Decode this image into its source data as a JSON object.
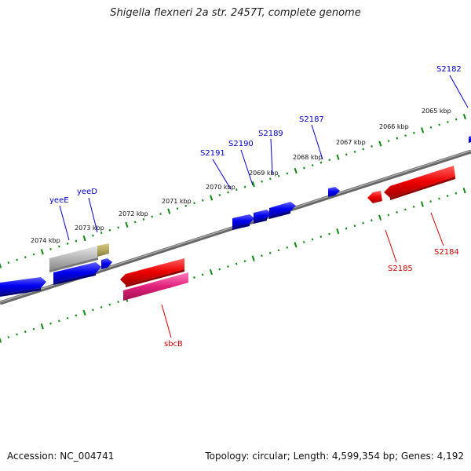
{
  "title": "Shigella flexneri 2a str. 2457T, complete genome",
  "footer": {
    "accession": "Accession: NC_004741",
    "stats": "Topology: circular; Length: 4,599,354 bp; Genes: 4,192"
  },
  "colors": {
    "forward_gene": "#0000ee",
    "reverse_gene": "#ee0000",
    "pseudogene": "#b0b0b0",
    "rna_gene": "#b5a860",
    "misc_feature": "#e0207a",
    "tick": "#118811",
    "backbone": "#777777"
  },
  "scale_labels": [
    "2065 kbp",
    "2066 kbp",
    "2067 kbp",
    "2068 kbp",
    "2069 kbp",
    "2070 kbp",
    "2071 kbp",
    "2072 kbp",
    "2073 kbp",
    "2074 kbp"
  ],
  "gene_labels": [
    {
      "text": "yeeE",
      "strand": "forward"
    },
    {
      "text": "yeeD",
      "strand": "forward"
    },
    {
      "text": "S2191",
      "strand": "forward"
    },
    {
      "text": "S2190",
      "strand": "forward"
    },
    {
      "text": "S2189",
      "strand": "forward"
    },
    {
      "text": "S2187",
      "strand": "forward"
    },
    {
      "text": "S2182",
      "strand": "forward"
    },
    {
      "text": "S2185",
      "strand": "reverse"
    },
    {
      "text": "S2184",
      "strand": "reverse"
    },
    {
      "text": "sbcB",
      "strand": "reverse"
    }
  ]
}
